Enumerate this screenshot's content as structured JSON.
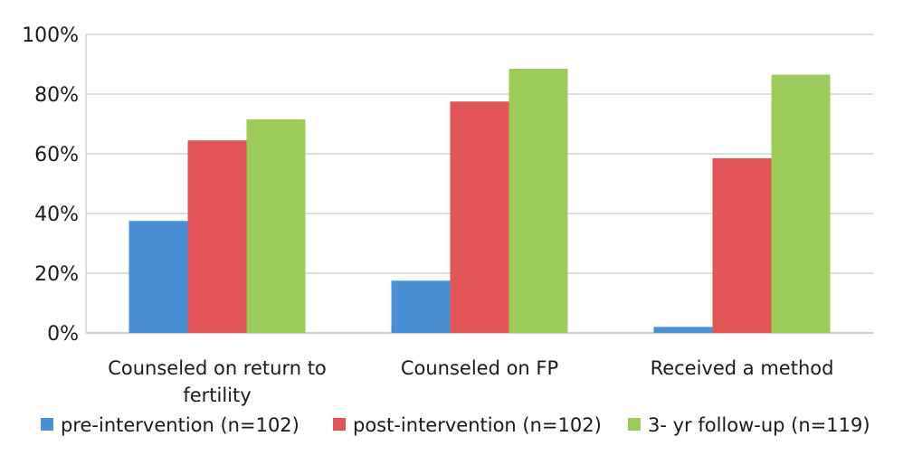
{
  "chart_data": {
    "type": "bar",
    "categories": [
      [
        "Counseled on return to",
        "fertility"
      ],
      [
        "Counseled on FP"
      ],
      [
        "Received a method"
      ]
    ],
    "series": [
      {
        "name": "pre-intervention (n=102)",
        "values": [
          37.5,
          17.5,
          2
        ],
        "color": "#4a90d4"
      },
      {
        "name": "post-intervention (n=102)",
        "values": [
          64.5,
          77.5,
          58.5
        ],
        "color": "#e05555"
      },
      {
        "name": "3- yr follow-up (n=119)",
        "values": [
          71.5,
          88.5,
          86.5
        ],
        "color": "#9ccb5a"
      }
    ],
    "ylim": [
      0,
      100
    ],
    "yticks": [
      "0%",
      "20%",
      "40%",
      "60%",
      "80%",
      "100%"
    ],
    "grid": true,
    "legend_position": "bottom",
    "title": "",
    "xlabel": "",
    "ylabel": ""
  }
}
